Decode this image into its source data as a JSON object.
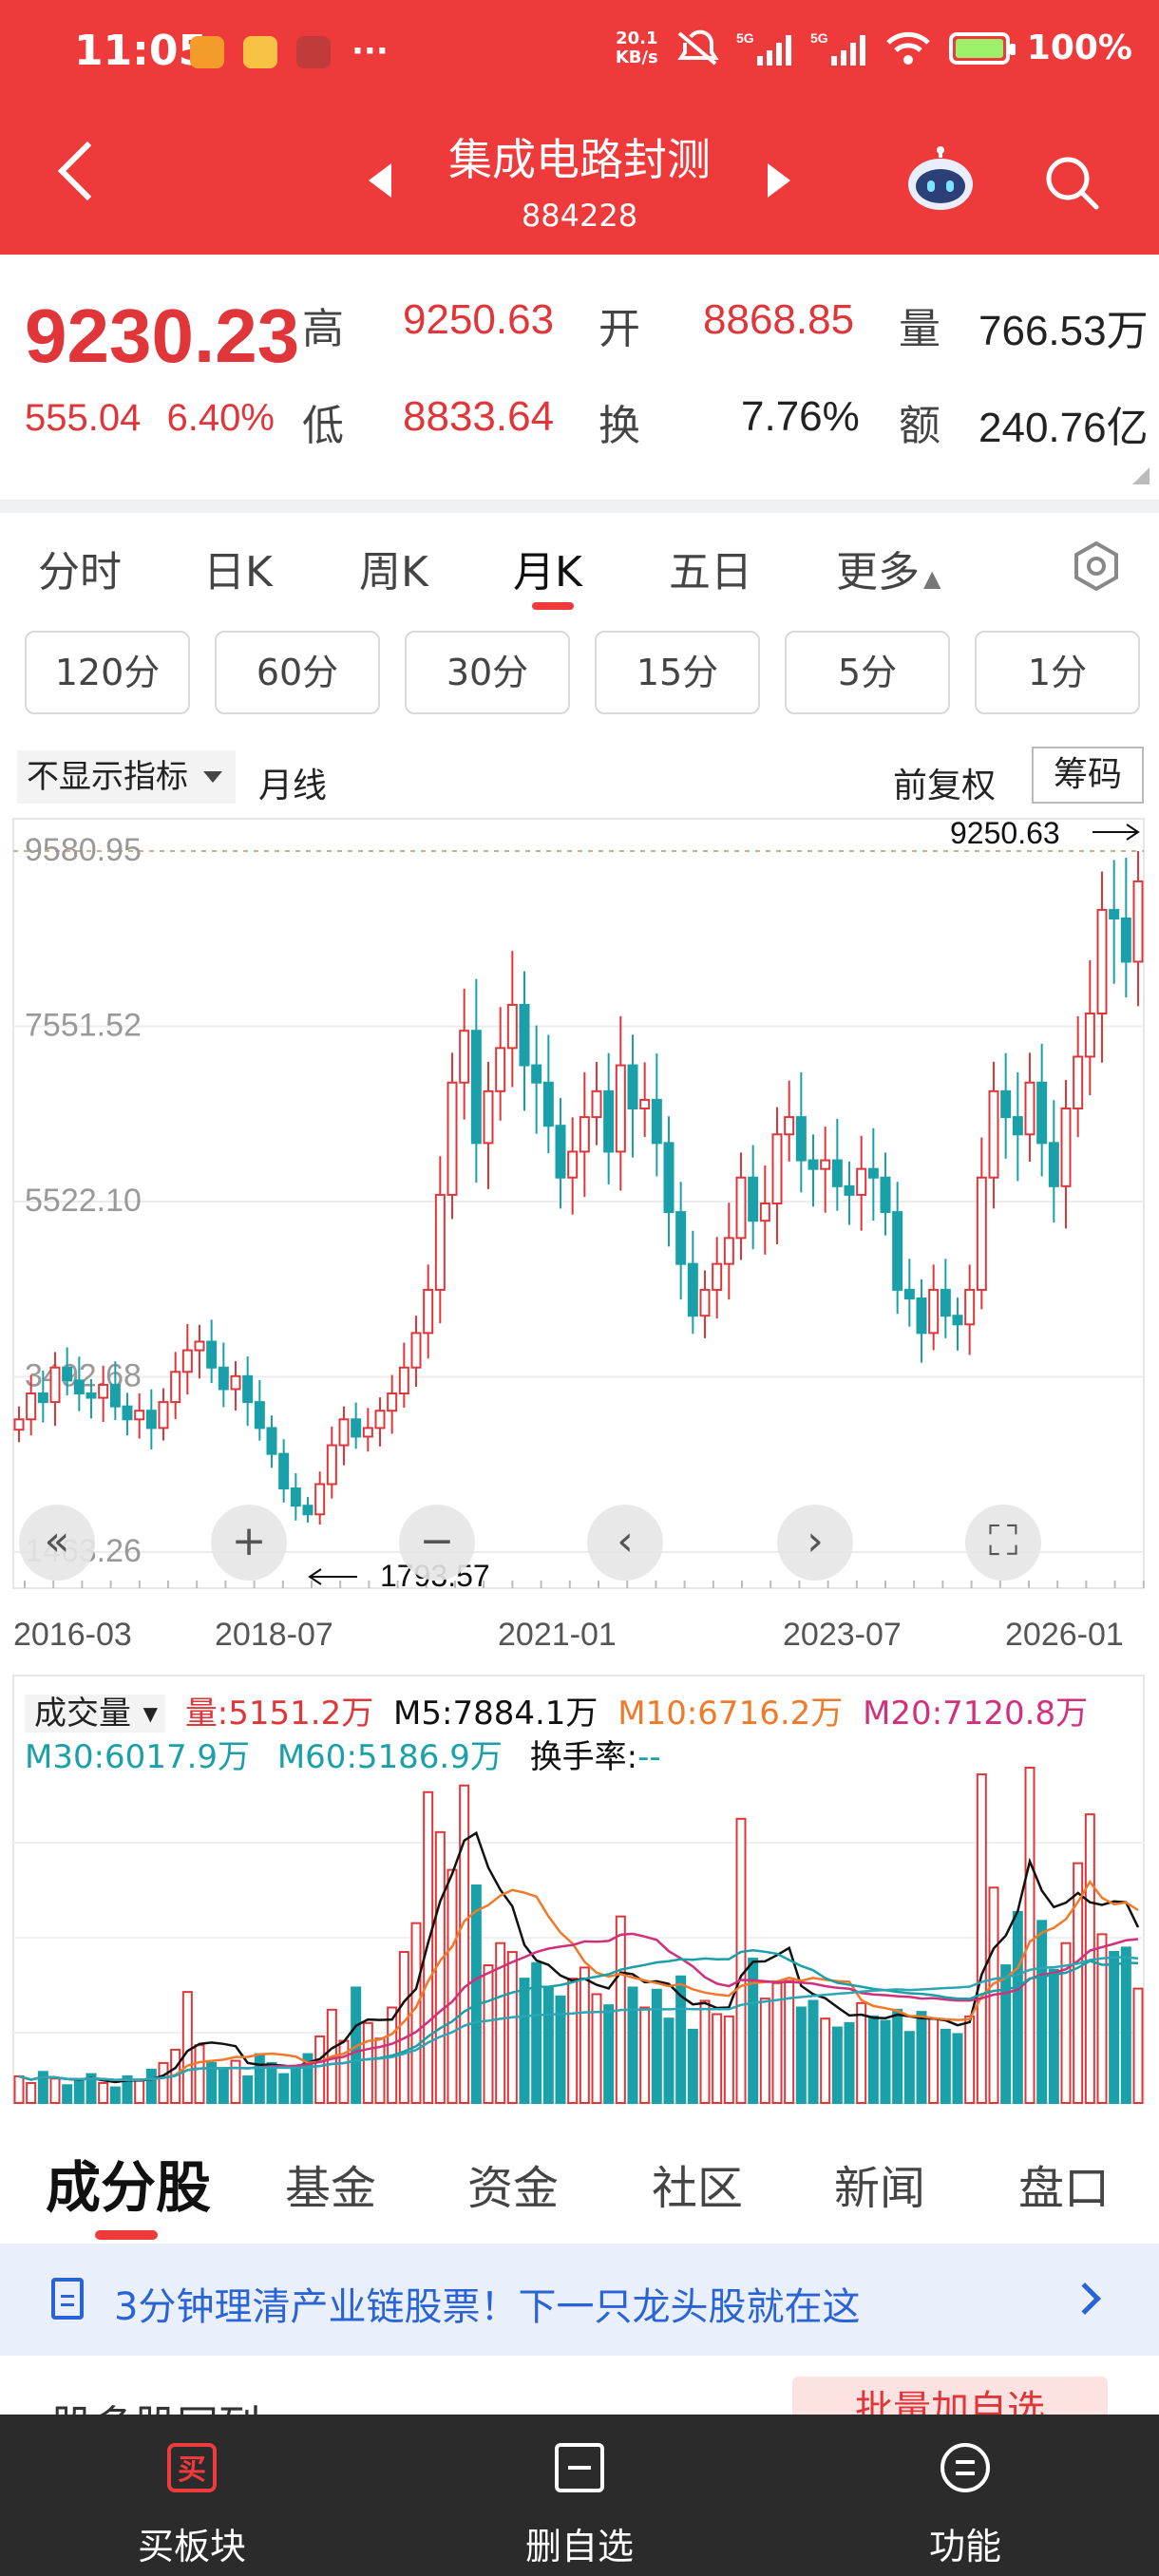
{
  "statusbar": {
    "time": "11:05",
    "speed": "20.1\nKB/s",
    "battery": "100%"
  },
  "header": {
    "title": "集成电路封测",
    "code": "884228"
  },
  "quote": {
    "price": "9230.23",
    "change": "555.04",
    "change_pct": "6.40%",
    "high_label": "高",
    "high": "9250.63",
    "low_label": "低",
    "low": "8833.64",
    "open_label": "开",
    "open": "8868.85",
    "turnover_label": "换",
    "turnover": "7.76%",
    "volume_label": "量",
    "volume": "766.53万",
    "amount_label": "额",
    "amount": "240.76亿"
  },
  "tabs": [
    "分时",
    "日K",
    "周K",
    "月K",
    "五日",
    "更多"
  ],
  "active_tab": "月K",
  "periods": [
    "120分",
    "60分",
    "30分",
    "15分",
    "5分",
    "1分"
  ],
  "indicator": {
    "dropdown": "不显示指标",
    "line": "月线",
    "adjust": "前复权",
    "chips": "筹码"
  },
  "kchart": {
    "y_ticks": [
      "9580.95",
      "7551.52",
      "5522.10",
      "3492.68",
      "1463.26"
    ],
    "x_ticks": [
      "2016-03",
      "2018-07",
      "2021-01",
      "2023-07",
      "2026-01"
    ],
    "max_label": "9250.63",
    "min_label": "1793.57"
  },
  "volume": {
    "dropdown": "成交量",
    "vol": "量:5151.2万",
    "m5": "M5:7884.1万",
    "m10": "M10:6716.2万",
    "m20": "M20:7120.8万",
    "m30": "M30:6017.9万",
    "m60": "M60:5186.9万",
    "turnover": "换手率:",
    "turnover_val": "--"
  },
  "subtabs": [
    "成分股",
    "基金",
    "资金",
    "社区",
    "新闻",
    "盘口"
  ],
  "banner": "3分钟理清产业链股票！下一只龙头股就在这",
  "peek": {
    "left": "股多股同列",
    "button": "批量加自选"
  },
  "bottom": [
    "买板块",
    "删自选",
    "功能"
  ],
  "colors": {
    "up": "#e0363a",
    "down": "#1aa0a8",
    "brand": "#ef3a3c"
  },
  "chart_data": {
    "type": "candlestick",
    "ylim": [
      1463.26,
      9580.95
    ],
    "y_ticks": [
      9580.95,
      7551.52,
      5522.1,
      3492.68,
      1463.26
    ],
    "x_ticks": [
      "2016-03",
      "2018-07",
      "2021-01",
      "2023-07",
      "2026-01"
    ],
    "period": "monthly",
    "close_series": [
      3000,
      3300,
      3200,
      3600,
      3450,
      3300,
      3250,
      3400,
      3150,
      3000,
      3100,
      2900,
      3200,
      3550,
      3800,
      3900,
      3600,
      3350,
      3500,
      3200,
      2900,
      2600,
      2200,
      2000,
      1900,
      2250,
      2700,
      3000,
      2800,
      2900,
      3100,
      3300,
      3600,
      4000,
      4500,
      5600,
      6900,
      7500,
      6200,
      6800,
      7300,
      7800,
      7100,
      6900,
      6400,
      5800,
      6100,
      6500,
      6800,
      6100,
      7100,
      6600,
      6700,
      6200,
      5400,
      4800,
      4200,
      4500,
      4800,
      5100,
      5800,
      5300,
      5500,
      6300,
      6500,
      6000,
      5900,
      6000,
      5700,
      5600,
      5900,
      5800,
      5400,
      4500,
      4400,
      4000,
      4500,
      4200,
      4100,
      4500,
      5800,
      6800,
      6500,
      6300,
      6900,
      6200,
      5700,
      6600,
      7200,
      7700,
      8900,
      8800,
      8300,
      9230
    ],
    "volume_wan": [
      1200,
      900,
      1400,
      1100,
      800,
      1000,
      1300,
      900,
      700,
      1200,
      1000,
      1500,
      1800,
      2400,
      5000,
      2600,
      1800,
      1500,
      1900,
      1200,
      2200,
      1800,
      1300,
      1600,
      2200,
      3000,
      4200,
      2800,
      5200,
      3600,
      2900,
      4300,
      6800,
      8100,
      14000,
      12200,
      10500,
      14300,
      9800,
      6200,
      7200,
      6800,
      5600,
      6300,
      5200,
      4800,
      5600,
      6100,
      4900,
      4400,
      8400,
      5200,
      4300,
      5100,
      3800,
      5700,
      3300,
      4600,
      4000,
      3900,
      12800,
      6500,
      4700,
      5400,
      5500,
      4300,
      4600,
      3800,
      3400,
      3600,
      4500,
      3900,
      3700,
      4200,
      3200,
      4100,
      3800,
      3300,
      3100,
      3900,
      14800,
      9700,
      6200,
      8600,
      15100,
      8200,
      6000,
      7200,
      10800,
      13000,
      7600,
      6800,
      7000,
      5151
    ],
    "min": 1793.57,
    "max": 9250.63
  }
}
